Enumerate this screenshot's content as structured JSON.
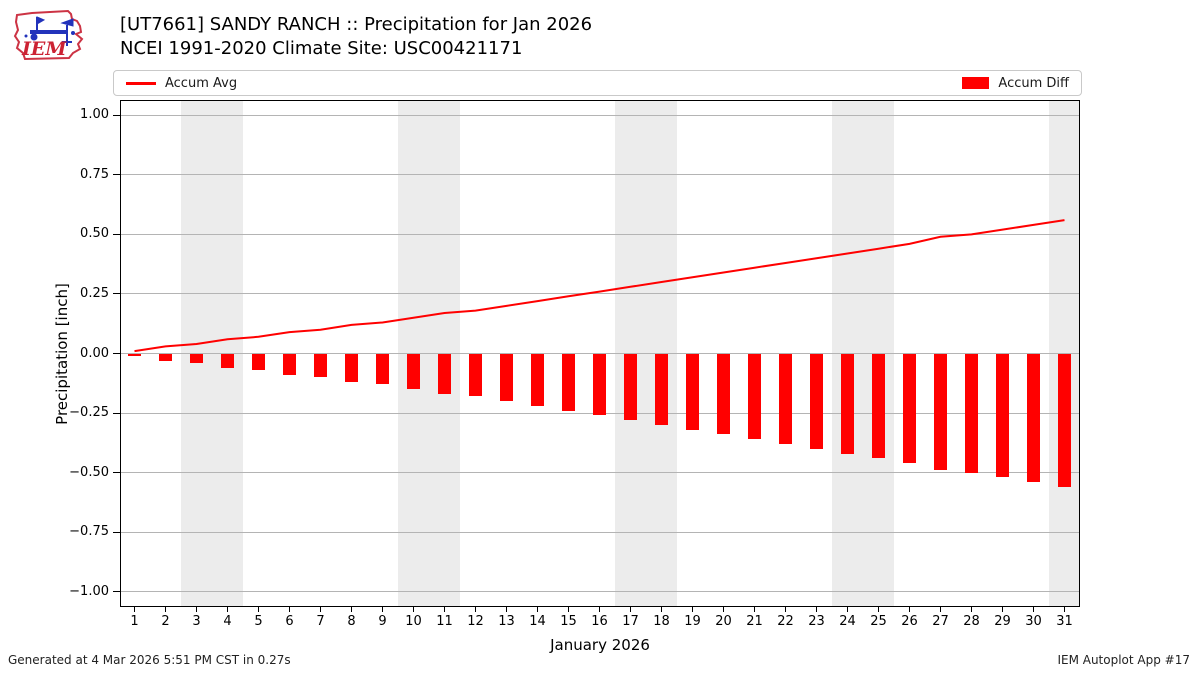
{
  "header": {
    "logo_text": "IEM",
    "title": "[UT7661] SANDY RANCH :: Precipitation for Jan 2026",
    "subtitle": "NCEI 1991-2020 Climate Site: USC00421171"
  },
  "legend": {
    "avg_label": "Accum Avg",
    "diff_label": "Accum Diff"
  },
  "chart_data": {
    "type": "bar",
    "title": "[UT7661] SANDY RANCH :: Precipitation for Jan 2026",
    "subtitle": "NCEI 1991-2020 Climate Site: USC00421171",
    "xlabel": "January 2026",
    "ylabel": "Precipitation [inch]",
    "x": [
      1,
      2,
      3,
      4,
      5,
      6,
      7,
      8,
      9,
      10,
      11,
      12,
      13,
      14,
      15,
      16,
      17,
      18,
      19,
      20,
      21,
      22,
      23,
      24,
      25,
      26,
      27,
      28,
      29,
      30,
      31
    ],
    "series": [
      {
        "name": "Accum Avg",
        "type": "line",
        "color": "#ff0000",
        "values": [
          0.01,
          0.03,
          0.04,
          0.06,
          0.07,
          0.09,
          0.1,
          0.12,
          0.13,
          0.15,
          0.17,
          0.18,
          0.2,
          0.22,
          0.24,
          0.26,
          0.28,
          0.3,
          0.32,
          0.34,
          0.36,
          0.38,
          0.4,
          0.42,
          0.44,
          0.46,
          0.49,
          0.5,
          0.52,
          0.54,
          0.56
        ]
      },
      {
        "name": "Accum Diff",
        "type": "bar",
        "color": "#ff0000",
        "values": [
          -0.01,
          -0.03,
          -0.04,
          -0.06,
          -0.07,
          -0.09,
          -0.1,
          -0.12,
          -0.13,
          -0.15,
          -0.17,
          -0.18,
          -0.2,
          -0.22,
          -0.24,
          -0.26,
          -0.28,
          -0.3,
          -0.32,
          -0.34,
          -0.36,
          -0.38,
          -0.4,
          -0.42,
          -0.44,
          -0.46,
          -0.49,
          -0.5,
          -0.52,
          -0.54,
          -0.56
        ]
      }
    ],
    "ylim": [
      -1.06,
      1.06
    ],
    "y_tick_values": [
      1.0,
      0.75,
      0.5,
      0.25,
      0.0,
      -0.25,
      -0.5,
      -0.75,
      -1.0
    ],
    "y_tick_labels": [
      "1.00",
      "0.75",
      "0.50",
      "0.25",
      "0.00",
      "−0.25",
      "−0.50",
      "−0.75",
      "−1.00"
    ],
    "weekend_bands": [
      [
        3,
        4
      ],
      [
        10,
        11
      ],
      [
        17,
        18
      ],
      [
        24,
        25
      ],
      [
        31,
        31
      ]
    ],
    "grid": true,
    "legend_position": "top"
  },
  "footer": {
    "left": "Generated at 4 Mar 2026 5:51 PM CST in 0.27s",
    "right": "IEM Autoplot App #17"
  },
  "colors": {
    "accent": "#ff0000",
    "grid": "#b4b4b4",
    "weekend_band": "#ececec",
    "spine": "#000000",
    "legend_border": "#c9c9c9"
  }
}
